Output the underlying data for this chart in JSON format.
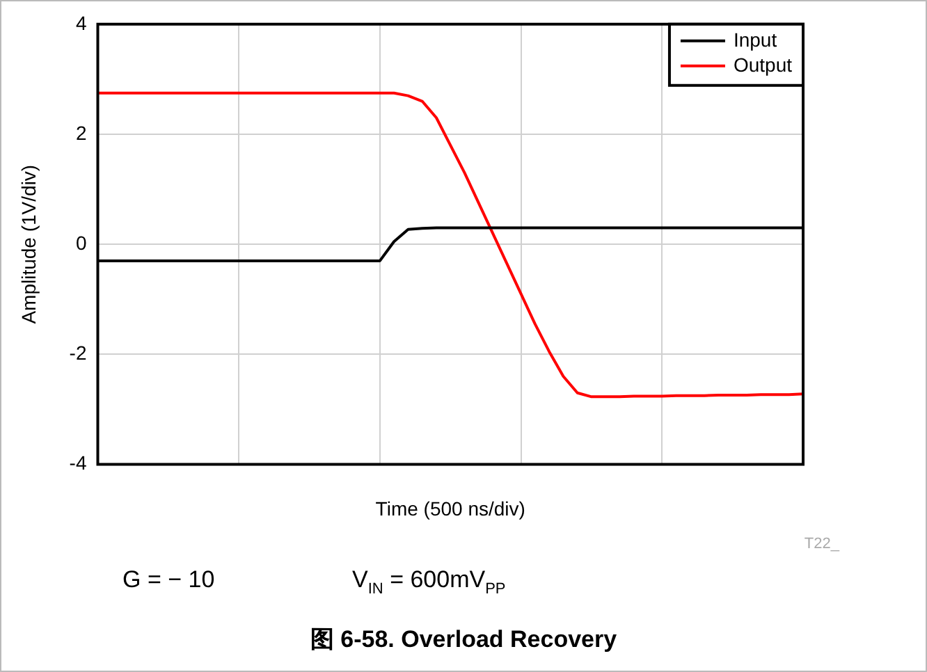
{
  "chart_data": {
    "type": "line",
    "title": "图 6-58. Overload Recovery",
    "xlabel": "Time (500 ns/div)",
    "ylabel": "Amplitude (1V/div)",
    "categories": [
      null,
      null,
      null,
      null,
      null,
      null,
      null,
      null,
      null,
      null,
      null,
      null,
      null,
      null,
      null,
      null,
      null,
      null,
      null,
      null,
      null,
      null,
      null,
      null,
      null,
      null,
      null,
      null,
      null,
      null,
      null,
      null,
      null,
      null,
      null,
      null,
      null,
      null,
      null,
      null,
      null,
      null,
      null,
      null,
      null,
      null,
      null,
      null,
      null,
      null,
      null
    ],
    "series": [
      {
        "name": "Input",
        "color": "#000000",
        "values": [
          -0.3,
          -0.3,
          -0.3,
          -0.3,
          -0.3,
          -0.3,
          -0.3,
          -0.3,
          -0.3,
          -0.3,
          -0.3,
          -0.3,
          -0.3,
          -0.3,
          -0.3,
          -0.3,
          -0.3,
          -0.3,
          -0.3,
          -0.3,
          -0.3,
          0.05,
          0.27,
          0.29,
          0.3,
          0.3,
          0.3,
          0.3,
          0.3,
          0.3,
          0.3,
          0.3,
          0.3,
          0.3,
          0.3,
          0.3,
          0.3,
          0.3,
          0.3,
          0.3,
          0.3,
          0.3,
          0.3,
          0.3,
          0.3,
          0.3,
          0.3,
          0.3,
          0.3,
          0.3,
          0.3
        ]
      },
      {
        "name": "Output",
        "color": "#ff0000",
        "values": [
          2.75,
          2.75,
          2.75,
          2.75,
          2.75,
          2.75,
          2.75,
          2.75,
          2.75,
          2.75,
          2.75,
          2.75,
          2.75,
          2.75,
          2.75,
          2.75,
          2.75,
          2.75,
          2.75,
          2.75,
          2.75,
          2.75,
          2.7,
          2.6,
          2.3,
          1.8,
          1.3,
          0.75,
          0.2,
          -0.35,
          -0.9,
          -1.45,
          -1.95,
          -2.4,
          -2.7,
          -2.77,
          -2.77,
          -2.77,
          -2.76,
          -2.76,
          -2.76,
          -2.75,
          -2.75,
          -2.75,
          -2.74,
          -2.74,
          -2.74,
          -2.73,
          -2.73,
          -2.73,
          -2.72
        ]
      }
    ],
    "ylim": [
      -4,
      4
    ],
    "yticks": [
      -4,
      -2,
      0,
      2,
      4
    ],
    "grid": true,
    "legend": "top right",
    "marker": "none",
    "line_style": "solid",
    "annotations": [
      "T22_",
      "G = − 10",
      "V$_{IN}$ = 600mV$_{PP}$"
    ]
  }
}
